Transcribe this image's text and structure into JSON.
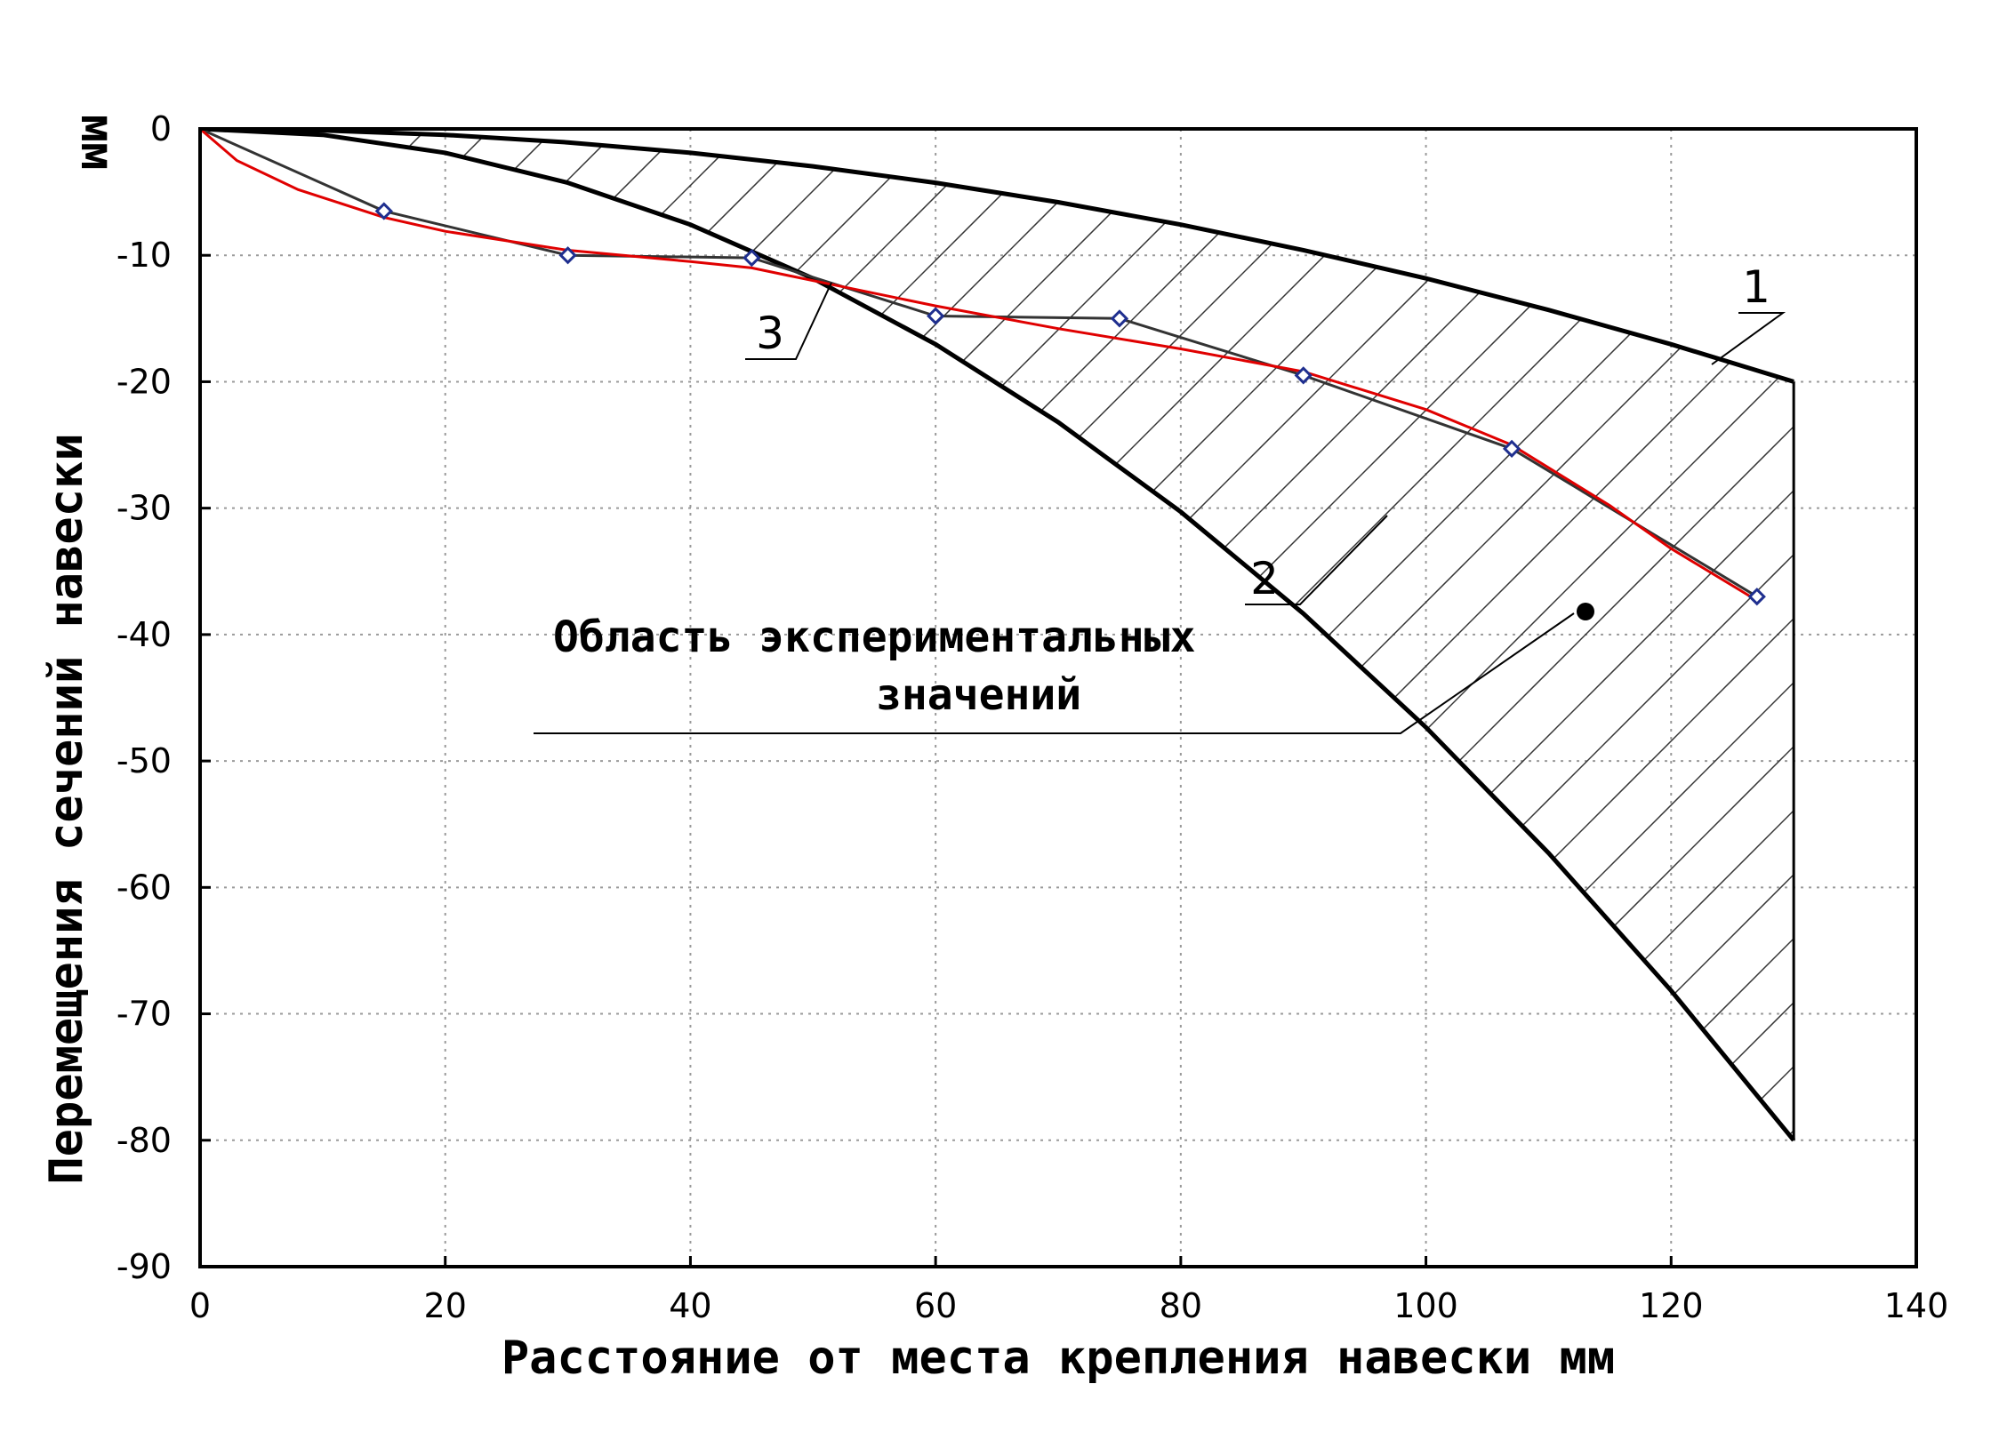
{
  "chart_data": {
    "type": "line",
    "xlabel": "Расстояние от места крепления навески мм",
    "ylabel": "Перемещения сечений навески",
    "ylabel_unit": "мм",
    "xlim": [
      0,
      140
    ],
    "ylim": [
      -90,
      0
    ],
    "xticks": [
      0,
      20,
      40,
      60,
      80,
      100,
      120,
      140
    ],
    "yticks": [
      0,
      -10,
      -20,
      -30,
      -40,
      -50,
      -60,
      -70,
      -80,
      -90
    ],
    "grid": true,
    "series": [
      {
        "name": "1",
        "color": "#000000",
        "x": [
          0,
          10,
          20,
          30,
          40,
          50,
          60,
          70,
          80,
          90,
          100,
          110,
          120,
          130
        ],
        "y": [
          0,
          -0.12,
          -0.47,
          -1.07,
          -1.89,
          -2.96,
          -4.26,
          -5.8,
          -7.57,
          -9.59,
          -11.83,
          -14.32,
          -17.04,
          -20
        ]
      },
      {
        "name": "2",
        "color": "#000000",
        "x": [
          0,
          10,
          20,
          30,
          40,
          50,
          60,
          70,
          80,
          90,
          100,
          110,
          120,
          130
        ],
        "y": [
          0,
          -0.47,
          -1.89,
          -4.26,
          -7.57,
          -11.83,
          -17.04,
          -23.2,
          -30.3,
          -38.34,
          -47.34,
          -57.28,
          -68.17,
          -80
        ]
      },
      {
        "name": "3",
        "color": "#1f2f8f",
        "marker": "diamond",
        "x": [
          0,
          15,
          30,
          45,
          60,
          75,
          90,
          107,
          127
        ],
        "y": [
          0,
          -6.5,
          -10,
          -10.2,
          -14.8,
          -15,
          -19.5,
          -25.3,
          -37
        ]
      },
      {
        "color": "#e00000",
        "x": [
          0,
          3,
          8,
          15,
          20,
          30,
          40,
          45,
          50,
          60,
          70,
          80,
          90,
          100,
          107,
          115,
          120,
          127
        ],
        "y": [
          0,
          -2.5,
          -4.8,
          -7,
          -8.1,
          -9.6,
          -10.5,
          -11,
          -12,
          -14,
          -15.8,
          -17.4,
          -19.2,
          -22.2,
          -25,
          -29.8,
          -33.2,
          -37.3
        ]
      }
    ],
    "annotations": {
      "region_label_line1": "Область экспериментальных",
      "region_label_line2": "значений",
      "curve_labels": [
        "1",
        "2",
        "3"
      ]
    }
  }
}
